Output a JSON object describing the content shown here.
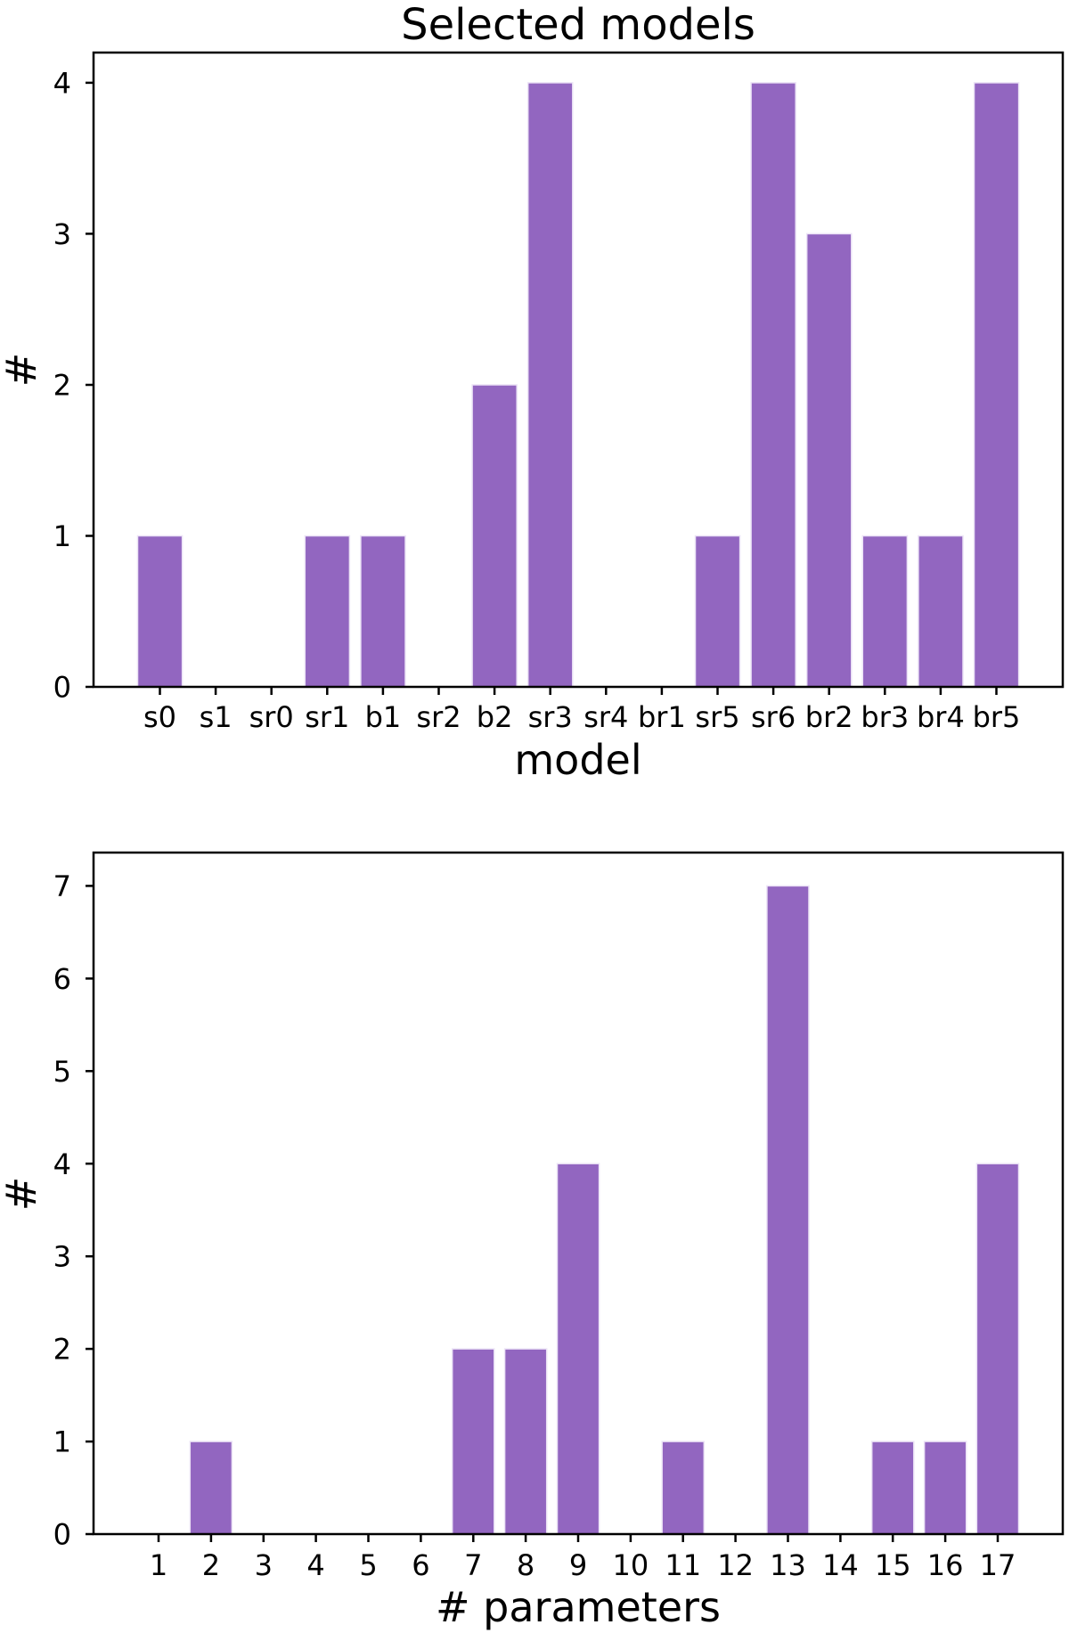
{
  "figure": {
    "background": "#ffffff"
  },
  "colors": {
    "bar_fill": "#9266c0",
    "bar_edge": "#ece3f6",
    "axis": "#000000",
    "text": "#000000"
  },
  "chart_data": [
    {
      "type": "bar",
      "title": "Selected models",
      "xlabel": "model",
      "ylabel": "#",
      "categories": [
        "s0",
        "s1",
        "sr0",
        "sr1",
        "b1",
        "sr2",
        "b2",
        "sr3",
        "sr4",
        "br1",
        "sr5",
        "sr6",
        "br2",
        "br3",
        "br4",
        "br5"
      ],
      "values": [
        1,
        0,
        0,
        1,
        1,
        0,
        2,
        4,
        0,
        0,
        1,
        4,
        3,
        1,
        1,
        4
      ],
      "yticks": [
        0,
        1,
        2,
        3,
        4
      ],
      "ylim": [
        0,
        4.2
      ],
      "grid": false,
      "legend": "none"
    },
    {
      "type": "bar",
      "title": "",
      "xlabel": "# parameters",
      "ylabel": "#",
      "categories": [
        "1",
        "2",
        "3",
        "4",
        "5",
        "6",
        "7",
        "8",
        "9",
        "10",
        "11",
        "12",
        "13",
        "14",
        "15",
        "16",
        "17"
      ],
      "values": [
        0,
        1,
        0,
        0,
        0,
        0,
        2,
        2,
        4,
        0,
        1,
        0,
        7,
        0,
        1,
        1,
        4
      ],
      "yticks": [
        0,
        1,
        2,
        3,
        4,
        5,
        6,
        7
      ],
      "ylim": [
        0,
        7.36
      ],
      "grid": false,
      "legend": "none"
    }
  ]
}
